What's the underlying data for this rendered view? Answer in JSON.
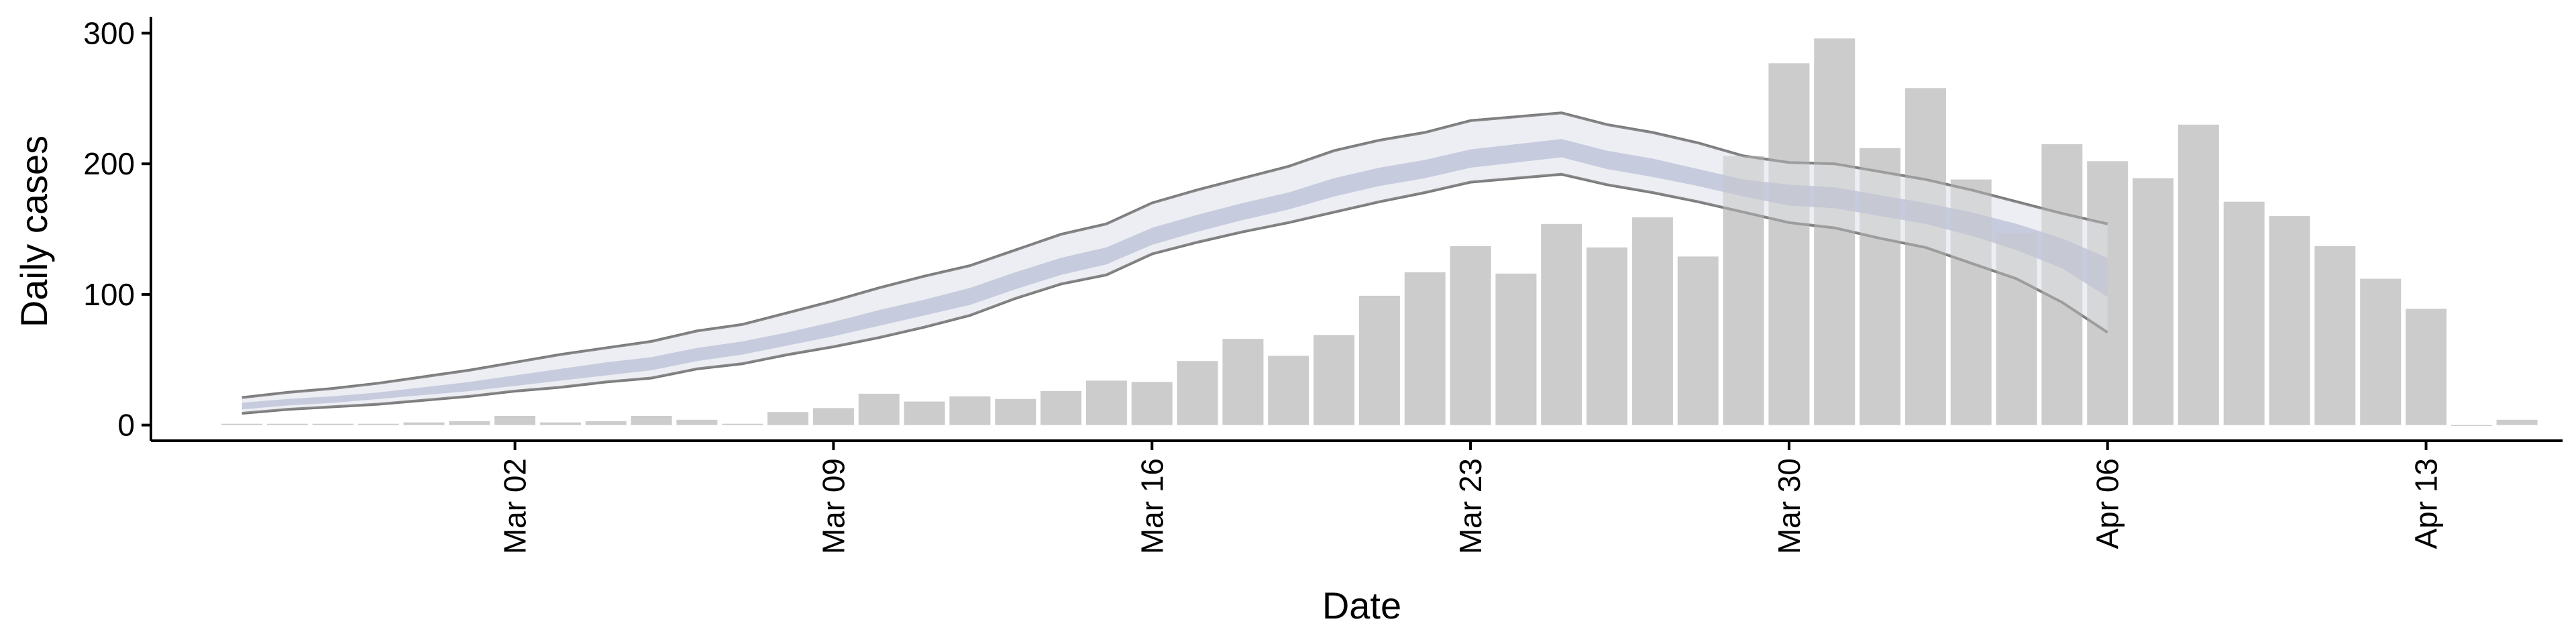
{
  "chart_data": {
    "type": "bar",
    "xlabel": "Date",
    "ylabel": "Daily cases",
    "ylim": [
      -12,
      310
    ],
    "xlim": [
      "2020-02-23",
      "2020-04-16"
    ],
    "y_ticks": [
      0,
      100,
      200,
      300
    ],
    "x_ticks": [
      {
        "date": "2020-03-02",
        "label": "Mar 02"
      },
      {
        "date": "2020-03-09",
        "label": "Mar 09"
      },
      {
        "date": "2020-03-16",
        "label": "Mar 16"
      },
      {
        "date": "2020-03-23",
        "label": "Mar 23"
      },
      {
        "date": "2020-03-30",
        "label": "Mar 30"
      },
      {
        "date": "2020-04-06",
        "label": "Apr 06"
      },
      {
        "date": "2020-04-13",
        "label": "Apr 13"
      }
    ],
    "grid": false,
    "legend": "none",
    "series": [
      {
        "type": "bar",
        "color": "#cccccc",
        "x": [
          "2020-02-25",
          "2020-02-26",
          "2020-02-27",
          "2020-02-28",
          "2020-02-29",
          "2020-03-01",
          "2020-03-02",
          "2020-03-03",
          "2020-03-04",
          "2020-03-05",
          "2020-03-06",
          "2020-03-07",
          "2020-03-08",
          "2020-03-09",
          "2020-03-10",
          "2020-03-11",
          "2020-03-12",
          "2020-03-13",
          "2020-03-14",
          "2020-03-15",
          "2020-03-16",
          "2020-03-17",
          "2020-03-18",
          "2020-03-19",
          "2020-03-20",
          "2020-03-21",
          "2020-03-22",
          "2020-03-23",
          "2020-03-24",
          "2020-03-25",
          "2020-03-26",
          "2020-03-27",
          "2020-03-28",
          "2020-03-29",
          "2020-03-30",
          "2020-03-31",
          "2020-04-01",
          "2020-04-02",
          "2020-04-03",
          "2020-04-04",
          "2020-04-05",
          "2020-04-06",
          "2020-04-07",
          "2020-04-08",
          "2020-04-09",
          "2020-04-10",
          "2020-04-11",
          "2020-04-12",
          "2020-04-13",
          "2020-04-14",
          "2020-04-15"
        ],
        "values": [
          1,
          1,
          1,
          1,
          2,
          3,
          7,
          2,
          3,
          7,
          4,
          1,
          10,
          13,
          24,
          18,
          22,
          20,
          26,
          34,
          33,
          49,
          66,
          53,
          69,
          99,
          117,
          137,
          116,
          154,
          136,
          159,
          129,
          206,
          277,
          296,
          212,
          258,
          188,
          147,
          215,
          202,
          189,
          230,
          171,
          160,
          137,
          112,
          89,
          0,
          4
        ]
      },
      {
        "type": "ribbon",
        "role": "outer-interval",
        "fill": "#e9ebf2",
        "stroke": "#7a7a7a",
        "x": [
          "2020-02-25",
          "2020-02-26",
          "2020-02-27",
          "2020-02-28",
          "2020-02-29",
          "2020-03-01",
          "2020-03-02",
          "2020-03-03",
          "2020-03-04",
          "2020-03-05",
          "2020-03-06",
          "2020-03-07",
          "2020-03-08",
          "2020-03-09",
          "2020-03-10",
          "2020-03-11",
          "2020-03-12",
          "2020-03-13",
          "2020-03-14",
          "2020-03-15",
          "2020-03-16",
          "2020-03-17",
          "2020-03-18",
          "2020-03-19",
          "2020-03-20",
          "2020-03-21",
          "2020-03-22",
          "2020-03-23",
          "2020-03-24",
          "2020-03-25",
          "2020-03-26",
          "2020-03-27",
          "2020-03-28",
          "2020-03-29",
          "2020-03-30",
          "2020-03-31",
          "2020-04-01",
          "2020-04-02",
          "2020-04-03",
          "2020-04-04",
          "2020-04-05",
          "2020-04-06"
        ],
        "upper": [
          21,
          25,
          28,
          32,
          37,
          42,
          48,
          54,
          59,
          64,
          72,
          77,
          86,
          95,
          105,
          114,
          122,
          134,
          146,
          154,
          170,
          180,
          189,
          198,
          210,
          218,
          224,
          233,
          236,
          239,
          230,
          224,
          216,
          206,
          201,
          200,
          194,
          188,
          180,
          171,
          162,
          154
        ],
        "lower": [
          9,
          12,
          14,
          16,
          19,
          22,
          26,
          29,
          33,
          36,
          43,
          47,
          54,
          60,
          67,
          75,
          84,
          97,
          108,
          115,
          131,
          140,
          148,
          155,
          163,
          171,
          178,
          186,
          189,
          192,
          184,
          178,
          171,
          163,
          155,
          151,
          143,
          136,
          124,
          112,
          94,
          71
        ]
      },
      {
        "type": "ribbon",
        "role": "inner-interval",
        "fill": "#c7ccdf",
        "x": [
          "2020-02-25",
          "2020-02-26",
          "2020-02-27",
          "2020-02-28",
          "2020-02-29",
          "2020-03-01",
          "2020-03-02",
          "2020-03-03",
          "2020-03-04",
          "2020-03-05",
          "2020-03-06",
          "2020-03-07",
          "2020-03-08",
          "2020-03-09",
          "2020-03-10",
          "2020-03-11",
          "2020-03-12",
          "2020-03-13",
          "2020-03-14",
          "2020-03-15",
          "2020-03-16",
          "2020-03-17",
          "2020-03-18",
          "2020-03-19",
          "2020-03-20",
          "2020-03-21",
          "2020-03-22",
          "2020-03-23",
          "2020-03-24",
          "2020-03-25",
          "2020-03-26",
          "2020-03-27",
          "2020-03-28",
          "2020-03-29",
          "2020-03-30",
          "2020-03-31",
          "2020-04-01",
          "2020-04-02",
          "2020-04-03",
          "2020-04-04",
          "2020-04-05",
          "2020-04-06"
        ],
        "upper": [
          17,
          20,
          22,
          25,
          29,
          33,
          38,
          43,
          48,
          52,
          59,
          64,
          71,
          79,
          88,
          96,
          105,
          117,
          128,
          136,
          151,
          161,
          170,
          178,
          189,
          197,
          203,
          211,
          215,
          219,
          210,
          204,
          196,
          188,
          184,
          182,
          176,
          170,
          163,
          154,
          143,
          128
        ],
        "lower": [
          12,
          15,
          17,
          20,
          23,
          26,
          30,
          34,
          38,
          42,
          49,
          54,
          61,
          68,
          76,
          84,
          92,
          104,
          115,
          123,
          138,
          148,
          157,
          165,
          175,
          183,
          189,
          197,
          201,
          205,
          196,
          190,
          183,
          175,
          168,
          166,
          160,
          154,
          145,
          134,
          120,
          98
        ]
      }
    ]
  }
}
